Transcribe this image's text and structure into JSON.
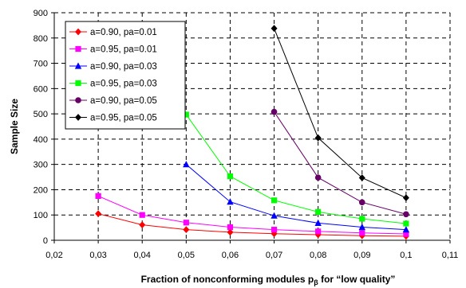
{
  "chart_data": {
    "type": "line",
    "xlabel_main": "Fraction of nonconforming modules p",
    "xlabel_sub": "β",
    "xlabel_tail": " for “low quality”",
    "ylabel": "Sample Size",
    "xlim": [
      0.02,
      0.11
    ],
    "ylim": [
      0,
      900
    ],
    "x_ticks": [
      "0,02",
      "0,03",
      "0,04",
      "0,05",
      "0,06",
      "0,07",
      "0,08",
      "0,09",
      "0,1",
      "0,11"
    ],
    "x_tick_values": [
      0.02,
      0.03,
      0.04,
      0.05,
      0.06,
      0.07,
      0.08,
      0.09,
      0.1,
      0.11
    ],
    "y_ticks": [
      "0",
      "100",
      "200",
      "300",
      "400",
      "500",
      "600",
      "700",
      "800",
      "900"
    ],
    "y_tick_values": [
      0,
      100,
      200,
      300,
      400,
      500,
      600,
      700,
      800,
      900
    ],
    "grid": "dashed",
    "legend_position": "top-left",
    "series": [
      {
        "name": "a=0.90, pa=0.01",
        "color": "#ff0000",
        "marker": "diamond",
        "x": [
          0.03,
          0.04,
          0.05,
          0.06,
          0.07,
          0.08,
          0.09,
          0.1
        ],
        "y": [
          105,
          61,
          42,
          32,
          26,
          22,
          18,
          16
        ]
      },
      {
        "name": "a=0.95, pa=0.01",
        "color": "#ff00ff",
        "marker": "square",
        "x": [
          0.03,
          0.04,
          0.05,
          0.06,
          0.07,
          0.08,
          0.09,
          0.1
        ],
        "y": [
          175,
          100,
          70,
          52,
          42,
          35,
          29,
          25
        ]
      },
      {
        "name": "a=0.90, pa=0.03",
        "color": "#0000ff",
        "marker": "triangle",
        "x": [
          0.05,
          0.06,
          0.07,
          0.08,
          0.09,
          0.1
        ],
        "y": [
          300,
          152,
          97,
          68,
          52,
          42
        ]
      },
      {
        "name": "a=0.95, pa=0.03",
        "color": "#00ff00",
        "marker": "square",
        "x": [
          0.05,
          0.06,
          0.07,
          0.08,
          0.09,
          0.1
        ],
        "y": [
          497,
          253,
          158,
          112,
          85,
          66
        ]
      },
      {
        "name": "a=0.90, pa=0.05",
        "color": "#660066",
        "marker": "circle",
        "x": [
          0.07,
          0.08,
          0.09,
          0.1
        ],
        "y": [
          508,
          248,
          150,
          103
        ]
      },
      {
        "name": "a=0.95, pa=0.05",
        "color": "#000000",
        "marker": "diamond",
        "x": [
          0.07,
          0.08,
          0.09,
          0.1
        ],
        "y": [
          838,
          405,
          247,
          168
        ]
      }
    ]
  }
}
